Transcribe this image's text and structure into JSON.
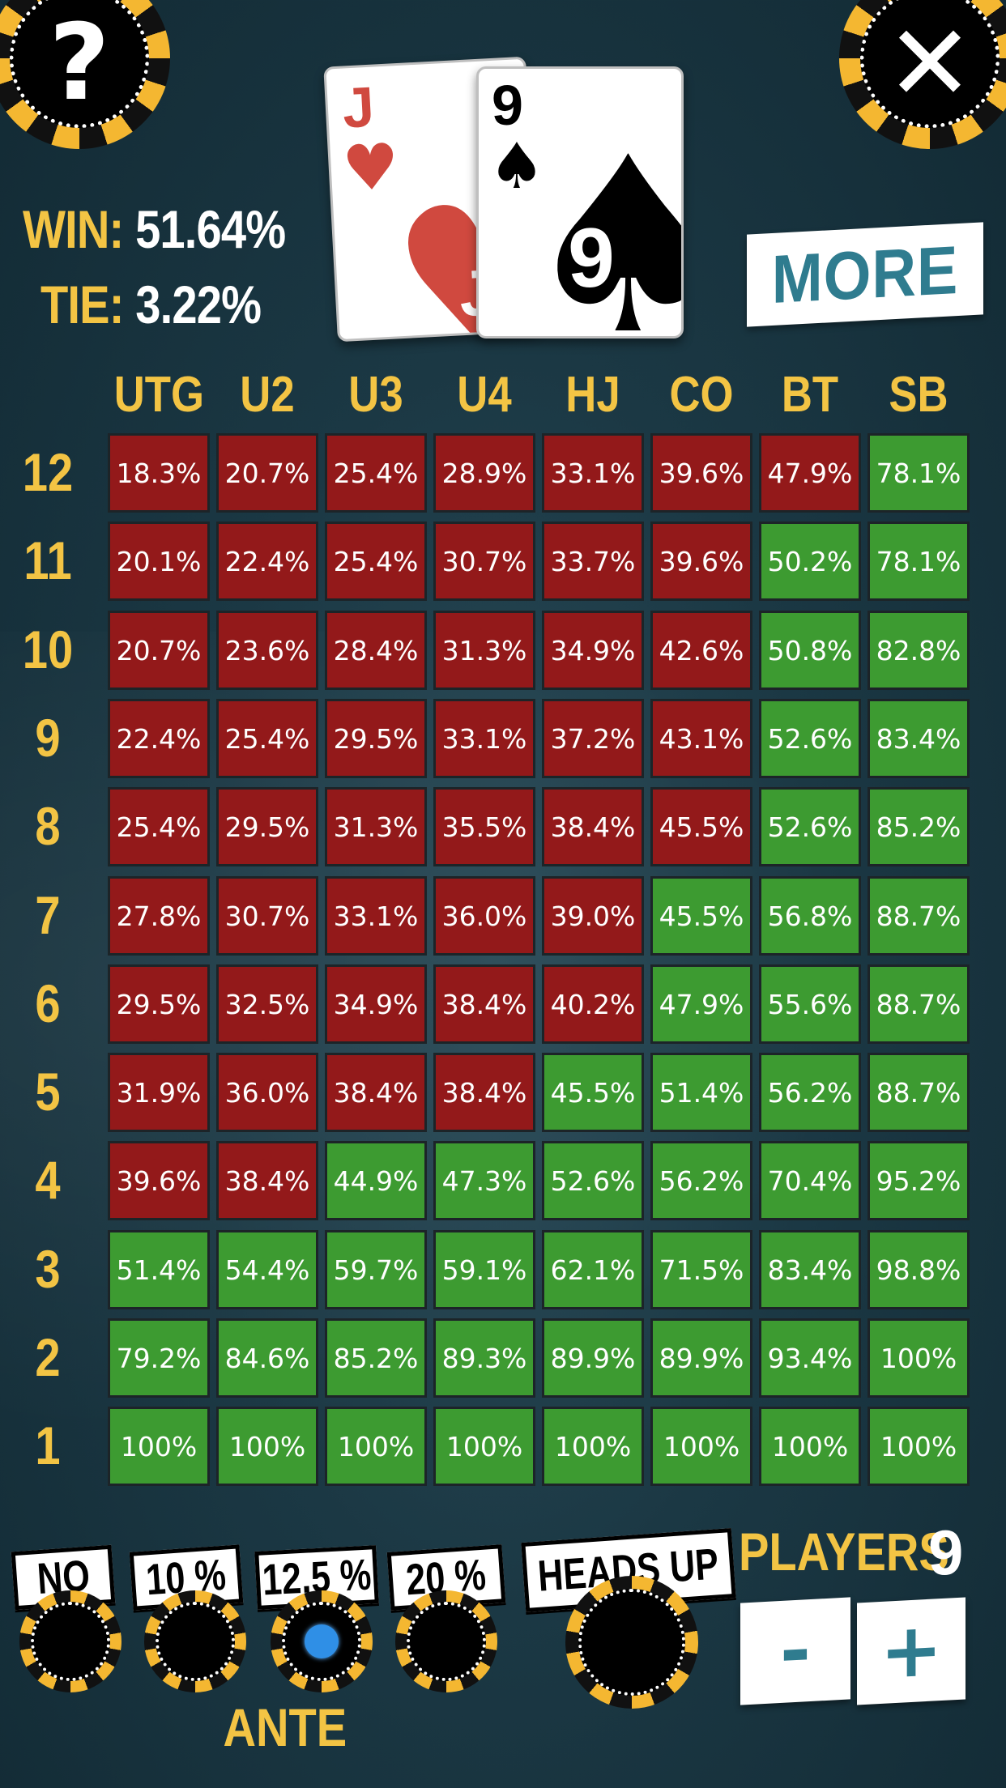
{
  "header": {
    "help_icon": "question-mark-icon",
    "close_icon": "close-x-icon",
    "win_label": "WIN:",
    "win_value": "51.64%",
    "tie_label": "TIE:",
    "tie_value": "3.22%",
    "more_label": "MORE"
  },
  "hand": {
    "cards": [
      {
        "rank": "J",
        "suit": "♥",
        "color": "#d0493f"
      },
      {
        "rank": "9",
        "suit": "♠",
        "color": "#000000"
      }
    ]
  },
  "grid": {
    "positions": [
      "UTG",
      "U2",
      "U3",
      "U4",
      "HJ",
      "CO",
      "BT",
      "SB"
    ],
    "colors": {
      "lose": "#93191a",
      "win": "#3d9b31"
    },
    "rows": [
      {
        "opponents": "12",
        "values": [
          "18.3%",
          "20.7%",
          "25.4%",
          "28.9%",
          "33.1%",
          "39.6%",
          "47.9%",
          "78.1%"
        ],
        "win": [
          0,
          0,
          0,
          0,
          0,
          0,
          0,
          1
        ]
      },
      {
        "opponents": "11",
        "values": [
          "20.1%",
          "22.4%",
          "25.4%",
          "30.7%",
          "33.7%",
          "39.6%",
          "50.2%",
          "78.1%"
        ],
        "win": [
          0,
          0,
          0,
          0,
          0,
          0,
          1,
          1
        ]
      },
      {
        "opponents": "10",
        "values": [
          "20.7%",
          "23.6%",
          "28.4%",
          "31.3%",
          "34.9%",
          "42.6%",
          "50.8%",
          "82.8%"
        ],
        "win": [
          0,
          0,
          0,
          0,
          0,
          0,
          1,
          1
        ]
      },
      {
        "opponents": "9",
        "values": [
          "22.4%",
          "25.4%",
          "29.5%",
          "33.1%",
          "37.2%",
          "43.1%",
          "52.6%",
          "83.4%"
        ],
        "win": [
          0,
          0,
          0,
          0,
          0,
          0,
          1,
          1
        ]
      },
      {
        "opponents": "8",
        "values": [
          "25.4%",
          "29.5%",
          "31.3%",
          "35.5%",
          "38.4%",
          "45.5%",
          "52.6%",
          "85.2%"
        ],
        "win": [
          0,
          0,
          0,
          0,
          0,
          0,
          1,
          1
        ]
      },
      {
        "opponents": "7",
        "values": [
          "27.8%",
          "30.7%",
          "33.1%",
          "36.0%",
          "39.0%",
          "45.5%",
          "56.8%",
          "88.7%"
        ],
        "win": [
          0,
          0,
          0,
          0,
          0,
          1,
          1,
          1
        ]
      },
      {
        "opponents": "6",
        "values": [
          "29.5%",
          "32.5%",
          "34.9%",
          "38.4%",
          "40.2%",
          "47.9%",
          "55.6%",
          "88.7%"
        ],
        "win": [
          0,
          0,
          0,
          0,
          0,
          1,
          1,
          1
        ]
      },
      {
        "opponents": "5",
        "values": [
          "31.9%",
          "36.0%",
          "38.4%",
          "38.4%",
          "45.5%",
          "51.4%",
          "56.2%",
          "88.7%"
        ],
        "win": [
          0,
          0,
          0,
          0,
          1,
          1,
          1,
          1
        ]
      },
      {
        "opponents": "4",
        "values": [
          "39.6%",
          "38.4%",
          "44.9%",
          "47.3%",
          "52.6%",
          "56.2%",
          "70.4%",
          "95.2%"
        ],
        "win": [
          0,
          0,
          1,
          1,
          1,
          1,
          1,
          1
        ]
      },
      {
        "opponents": "3",
        "values": [
          "51.4%",
          "54.4%",
          "59.7%",
          "59.1%",
          "62.1%",
          "71.5%",
          "83.4%",
          "98.8%"
        ],
        "win": [
          1,
          1,
          1,
          1,
          1,
          1,
          1,
          1
        ]
      },
      {
        "opponents": "2",
        "values": [
          "79.2%",
          "84.6%",
          "85.2%",
          "89.3%",
          "89.9%",
          "89.9%",
          "93.4%",
          "100%"
        ],
        "win": [
          1,
          1,
          1,
          1,
          1,
          1,
          1,
          1
        ]
      },
      {
        "opponents": "1",
        "values": [
          "100%",
          "100%",
          "100%",
          "100%",
          "100%",
          "100%",
          "100%",
          "100%"
        ],
        "win": [
          1,
          1,
          1,
          1,
          1,
          1,
          1,
          1
        ]
      }
    ]
  },
  "ante": {
    "label": "ANTE",
    "options": [
      "NO",
      "10 %",
      "12.5 %",
      "20 %"
    ],
    "selected": "12.5 %"
  },
  "heads_up": {
    "label": "HEADS UP"
  },
  "players": {
    "label": "PLAYERS",
    "count": "9",
    "minus_label": "-",
    "plus_label": "+"
  }
}
